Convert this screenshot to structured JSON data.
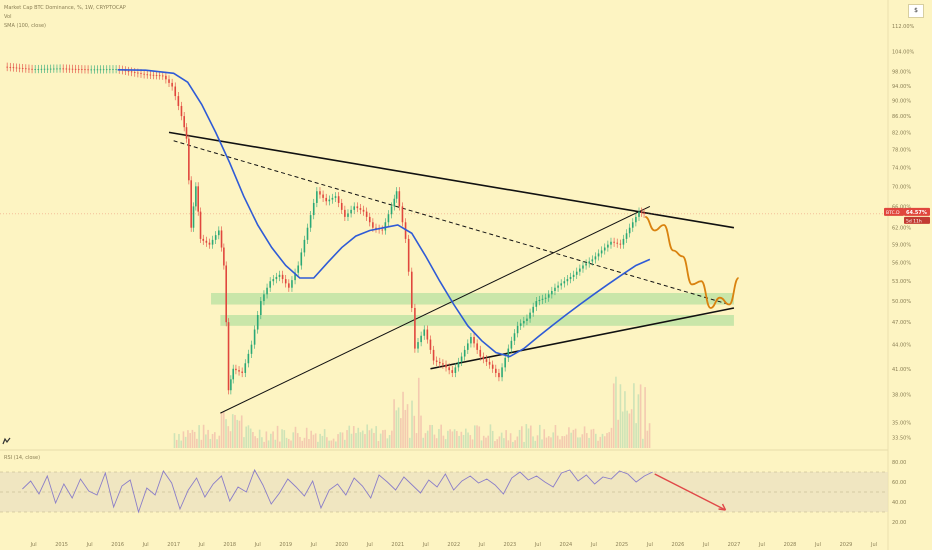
{
  "legend": {
    "symbol_line": "Market Cap BTC Dominance, %, 1W, CRYPTOCAP",
    "vol_label": "Vol",
    "sma_label": "SMA (100, close)"
  },
  "rsi_label": "RSI (14, close)",
  "currency_button": "$",
  "price_tag": {
    "symbol": "BTC.D",
    "value": "64.57%",
    "countdown": "5d 11h"
  },
  "colors": {
    "background": "#fdf4c2",
    "candle_up": "#2aa876",
    "candle_down": "#e0463d",
    "sma": "#2f5bd6",
    "projection": "#d9820f",
    "support_zone": "#b7e2a0",
    "rsi_line": "#8b7ec8",
    "arrow": "#e04848"
  },
  "chart_data": {
    "type": "line",
    "title": "Market Cap BTC Dominance, %, 1W, CRYPTOCAP",
    "ylabel": "%",
    "ylim": [
      32.5,
      114
    ],
    "scale": "log",
    "y_ticks": [
      "112.00%",
      "104.00%",
      "98.00%",
      "94.00%",
      "90.00%",
      "86.00%",
      "82.00%",
      "78.00%",
      "74.00%",
      "70.00%",
      "66.00%",
      "62.00%",
      "59.00%",
      "56.00%",
      "53.00%",
      "50.00%",
      "47.00%",
      "44.00%",
      "41.00%",
      "38.00%",
      "35.00%",
      "33.50%"
    ],
    "x_ticks": [
      "Jul",
      "2015",
      "Jul",
      "2016",
      "Jul",
      "2017",
      "Jul",
      "2018",
      "Jul",
      "2019",
      "Jul",
      "2020",
      "Jul",
      "2021",
      "Jul",
      "2022",
      "Jul",
      "2023",
      "Jul",
      "2024",
      "Jul",
      "2025",
      "Jul",
      "2026",
      "Jul",
      "2027",
      "Jul",
      "2028",
      "Jul",
      "2029",
      "Jul"
    ],
    "series": [
      {
        "name": "BTC.D",
        "points": [
          [
            "2014-01",
            99.4
          ],
          [
            "2014-07",
            98.7
          ],
          [
            "2015-01",
            98.9
          ],
          [
            "2015-07",
            98.6
          ],
          [
            "2016-01",
            98.7
          ],
          [
            "2016-07",
            97.2
          ],
          [
            "2016-11",
            96.8
          ],
          [
            "2017-01",
            93.8
          ],
          [
            "2017-03",
            86.0
          ],
          [
            "2017-04",
            80.5
          ],
          [
            "2017-05",
            62.0
          ],
          [
            "2017-06",
            70.0
          ],
          [
            "2017-07",
            60.0
          ],
          [
            "2017-09",
            59.0
          ],
          [
            "2017-11",
            61.5
          ],
          [
            "2017-12",
            55.5
          ],
          [
            "2018-01",
            38.5
          ],
          [
            "2018-02",
            41.0
          ],
          [
            "2018-04",
            40.5
          ],
          [
            "2018-06",
            44.0
          ],
          [
            "2018-08",
            50.0
          ],
          [
            "2018-10",
            53.0
          ],
          [
            "2018-12",
            54.0
          ],
          [
            "2019-02",
            52.0
          ],
          [
            "2019-04",
            55.5
          ],
          [
            "2019-06",
            62.0
          ],
          [
            "2019-08",
            69.0
          ],
          [
            "2019-10",
            67.0
          ],
          [
            "2019-12",
            68.0
          ],
          [
            "2020-02",
            64.0
          ],
          [
            "2020-04",
            66.0
          ],
          [
            "2020-06",
            65.0
          ],
          [
            "2020-08",
            62.0
          ],
          [
            "2020-10",
            61.5
          ],
          [
            "2020-12",
            66.0
          ],
          [
            "2021-01",
            69.0
          ],
          [
            "2021-03",
            60.0
          ],
          [
            "2021-05",
            43.5
          ],
          [
            "2021-07",
            46.0
          ],
          [
            "2021-09",
            42.0
          ],
          [
            "2021-11",
            41.5
          ],
          [
            "2022-01",
            40.5
          ],
          [
            "2022-03",
            42.5
          ],
          [
            "2022-05",
            45.0
          ],
          [
            "2022-07",
            42.5
          ],
          [
            "2022-09",
            41.5
          ],
          [
            "2022-11",
            40.0
          ],
          [
            "2023-01",
            43.5
          ],
          [
            "2023-03",
            46.5
          ],
          [
            "2023-05",
            47.5
          ],
          [
            "2023-07",
            50.0
          ],
          [
            "2023-09",
            50.5
          ],
          [
            "2023-11",
            52.0
          ],
          [
            "2024-01",
            53.0
          ],
          [
            "2024-03",
            54.0
          ],
          [
            "2024-05",
            55.5
          ],
          [
            "2024-07",
            56.5
          ],
          [
            "2024-09",
            58.0
          ],
          [
            "2024-11",
            59.5
          ],
          [
            "2025-01",
            59.0
          ],
          [
            "2025-03",
            62.0
          ],
          [
            "2025-05",
            65.0
          ],
          [
            "2025-06",
            64.57
          ]
        ]
      },
      {
        "name": "SMA (100, close)",
        "points": [
          [
            "2016-01",
            98.5
          ],
          [
            "2016-07",
            98.4
          ],
          [
            "2017-01",
            97.5
          ],
          [
            "2017-04",
            95.0
          ],
          [
            "2017-07",
            89.0
          ],
          [
            "2017-10",
            82.0
          ],
          [
            "2018-01",
            75.0
          ],
          [
            "2018-04",
            68.0
          ],
          [
            "2018-07",
            62.5
          ],
          [
            "2018-10",
            58.5
          ],
          [
            "2019-01",
            55.5
          ],
          [
            "2019-04",
            53.5
          ],
          [
            "2019-07",
            53.5
          ],
          [
            "2019-10",
            56.0
          ],
          [
            "2020-01",
            58.5
          ],
          [
            "2020-04",
            60.5
          ],
          [
            "2020-07",
            61.5
          ],
          [
            "2020-10",
            62.0
          ],
          [
            "2021-01",
            62.5
          ],
          [
            "2021-04",
            61.0
          ],
          [
            "2021-07",
            57.0
          ],
          [
            "2021-10",
            53.0
          ],
          [
            "2022-01",
            49.5
          ],
          [
            "2022-04",
            46.5
          ],
          [
            "2022-07",
            44.5
          ],
          [
            "2022-10",
            43.0
          ],
          [
            "2023-01",
            42.5
          ],
          [
            "2023-04",
            43.5
          ],
          [
            "2023-07",
            45.0
          ],
          [
            "2023-10",
            46.5
          ],
          [
            "2024-01",
            48.0
          ],
          [
            "2024-04",
            49.5
          ],
          [
            "2024-07",
            51.0
          ],
          [
            "2024-10",
            52.5
          ],
          [
            "2025-01",
            54.0
          ],
          [
            "2025-04",
            55.5
          ],
          [
            "2025-07",
            56.5
          ]
        ]
      },
      {
        "name": "Projection",
        "points": [
          [
            "2025-06",
            64.0
          ],
          [
            "2025-08",
            61.5
          ],
          [
            "2025-10",
            62.5
          ],
          [
            "2025-12",
            58.0
          ],
          [
            "2026-02",
            57.0
          ],
          [
            "2026-04",
            52.5
          ],
          [
            "2026-06",
            53.0
          ],
          [
            "2026-08",
            49.0
          ],
          [
            "2026-10",
            50.5
          ],
          [
            "2026-12",
            49.5
          ],
          [
            "2027-02",
            53.5
          ]
        ]
      }
    ],
    "trendlines": [
      {
        "name": "upper resistance",
        "from": [
          "2016-12",
          82.0
        ],
        "to": [
          "2027-01",
          62.0
        ]
      },
      {
        "name": "dashed trendline",
        "from": [
          "2017-01",
          80.0
        ],
        "to": [
          "2026-12",
          49.5
        ]
      },
      {
        "name": "rising support",
        "from": [
          "2017-11",
          36.0
        ],
        "to": [
          "2025-07",
          66.0
        ]
      },
      {
        "name": "lower support",
        "from": [
          "2021-08",
          41.0
        ],
        "to": [
          "2027-01",
          49.0
        ]
      }
    ],
    "zones": [
      {
        "name": "support zone 1",
        "from": "2017-09",
        "to": "2027-01",
        "low": 49.5,
        "high": 51.2
      },
      {
        "name": "support zone 2",
        "from": "2017-11",
        "to": "2027-01",
        "low": 46.5,
        "high": 48.0
      }
    ],
    "rsi": {
      "label": "RSI (14, close)",
      "y_ticks": [
        "80.00",
        "60.00",
        "40.00",
        "20.00"
      ],
      "band": [
        30,
        70
      ],
      "values": [
        53,
        61,
        48,
        66,
        39,
        58,
        44,
        63,
        51,
        47,
        69,
        35,
        56,
        62,
        30,
        54,
        47,
        71,
        59,
        33,
        52,
        64,
        45,
        58,
        66,
        41,
        55,
        50,
        72,
        57,
        38,
        49,
        63,
        55,
        46,
        61,
        34,
        52,
        58,
        47,
        64,
        56,
        44,
        67,
        60,
        52,
        65,
        57,
        49,
        62,
        55,
        68,
        52,
        61,
        66,
        59,
        63,
        57,
        48,
        64,
        70,
        62,
        66,
        60,
        55,
        69,
        72,
        61,
        67,
        58,
        65,
        63,
        71,
        68,
        60,
        66,
        70
      ]
    }
  }
}
